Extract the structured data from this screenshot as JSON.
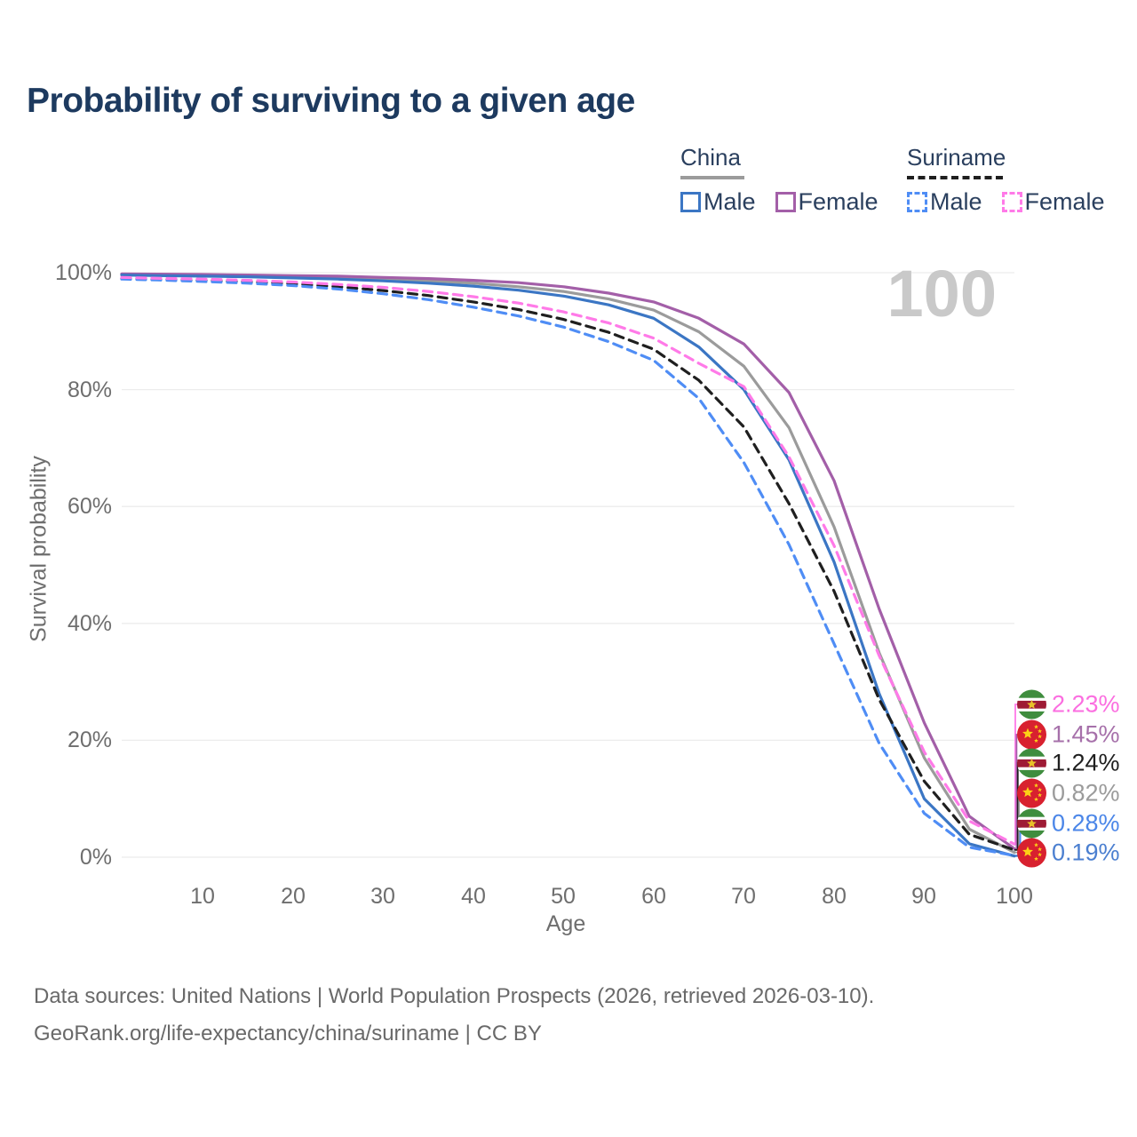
{
  "title": "Probability of surviving to a given age",
  "legend": {
    "china": {
      "label": "China",
      "male": "Male",
      "female": "Female",
      "line_color": "#9b9b9b",
      "male_color": "#3b76c4",
      "female_color": "#a35fa8"
    },
    "suriname": {
      "label": "Suriname",
      "male": "Male",
      "female": "Female",
      "line_color": "#1f1f1f",
      "male_color": "#4f8df5",
      "female_color": "#ff7ae8"
    }
  },
  "axes": {
    "y_label": "Survival probability",
    "x_label": "Age",
    "y_ticks": [
      "100%",
      "80%",
      "60%",
      "40%",
      "20%",
      "0%"
    ],
    "x_ticks": [
      10,
      20,
      30,
      40,
      50,
      60,
      70,
      80,
      90,
      100
    ]
  },
  "hover_age_watermark": "100",
  "value_labels": [
    {
      "flag": "suriname-flag-icon",
      "series": "suriname_female",
      "text": "2.23%",
      "color": "#fb6ee0"
    },
    {
      "flag": "china-flag-icon",
      "series": "china_female",
      "text": "1.45%",
      "color": "#a670aa"
    },
    {
      "flag": "suriname-flag-icon",
      "series": "suriname_all",
      "text": "1.24%",
      "color": "#1f1f1f"
    },
    {
      "flag": "china-flag-icon",
      "series": "china_all",
      "text": "0.82%",
      "color": "#9b9b9b"
    },
    {
      "flag": "suriname-flag-icon",
      "series": "suriname_male",
      "text": "0.28%",
      "color": "#4b86e8"
    },
    {
      "flag": "china-flag-icon",
      "series": "china_male",
      "text": "0.19%",
      "color": "#4b7fd0"
    }
  ],
  "footer": {
    "line1": "Data sources: United Nations | World Population Prospects (2026, retrieved 2026-03-10).",
    "line2": "GeoRank.org/life-expectancy/china/suriname | CC BY"
  },
  "chart_data": {
    "type": "line",
    "title": "Probability of surviving to a given age",
    "xlabel": "Age",
    "ylabel": "Survival probability",
    "xlim": [
      1,
      100
    ],
    "ylim": [
      0,
      100
    ],
    "grid": "horizontal",
    "y_gridlines_pct": [
      0,
      20,
      40,
      60,
      80,
      100
    ],
    "legend_position": "top-right",
    "x": [
      1,
      5,
      10,
      15,
      20,
      25,
      30,
      35,
      40,
      45,
      50,
      55,
      60,
      65,
      70,
      75,
      80,
      85,
      90,
      95,
      100
    ],
    "series": [
      {
        "name": "china_all",
        "display": "China (both sexes)",
        "style": "solid",
        "color": "#9b9b9b",
        "values": [
          99.7,
          99.6,
          99.5,
          99.4,
          99.3,
          99.1,
          98.9,
          98.6,
          98.2,
          97.6,
          96.8,
          95.5,
          93.6,
          89.9,
          84.0,
          73.5,
          56.5,
          35.0,
          17.0,
          4.8,
          0.82
        ],
        "end_label": "0.82%"
      },
      {
        "name": "china_female",
        "display": "China Female",
        "style": "solid",
        "color": "#a35fa8",
        "values": [
          99.8,
          99.75,
          99.7,
          99.6,
          99.5,
          99.4,
          99.2,
          99.0,
          98.7,
          98.3,
          97.6,
          96.5,
          95.0,
          92.2,
          87.8,
          79.5,
          64.4,
          42.5,
          23.0,
          7.0,
          1.45
        ],
        "end_label": "1.45%"
      },
      {
        "name": "china_male",
        "display": "China Male",
        "style": "solid",
        "color": "#3b76c4",
        "values": [
          99.6,
          99.5,
          99.4,
          99.3,
          99.1,
          98.9,
          98.6,
          98.2,
          97.7,
          97.0,
          96.0,
          94.5,
          92.2,
          87.3,
          80.0,
          68.0,
          50.5,
          28.0,
          10.0,
          2.3,
          0.19
        ],
        "end_label": "0.19%"
      },
      {
        "name": "suriname_all",
        "display": "Suriname (both sexes)",
        "style": "dashed",
        "color": "#1f1f1f",
        "values": [
          99.05,
          98.9,
          98.7,
          98.45,
          98.1,
          97.6,
          96.95,
          96.1,
          95.0,
          93.7,
          92.0,
          89.8,
          86.9,
          81.6,
          73.6,
          60.5,
          45.5,
          27.0,
          13.0,
          3.9,
          1.24
        ],
        "end_label": "1.24%"
      },
      {
        "name": "suriname_male",
        "display": "Suriname Male",
        "style": "dashed",
        "color": "#4f8df5",
        "values": [
          98.9,
          98.75,
          98.5,
          98.2,
          97.8,
          97.2,
          96.4,
          95.4,
          94.1,
          92.6,
          90.7,
          88.2,
          85.0,
          78.5,
          67.5,
          53.5,
          36.5,
          19.5,
          7.5,
          1.7,
          0.28
        ],
        "end_label": "0.28%"
      },
      {
        "name": "suriname_female",
        "display": "Suriname Female",
        "style": "dashed",
        "color": "#ff7ae8",
        "values": [
          99.2,
          99.05,
          98.9,
          98.7,
          98.4,
          98.0,
          97.5,
          96.8,
          95.9,
          94.8,
          93.3,
          91.4,
          88.8,
          84.5,
          80.5,
          68.5,
          53.3,
          34.5,
          18.0,
          6.2,
          2.23
        ],
        "end_label": "2.23%"
      }
    ]
  }
}
